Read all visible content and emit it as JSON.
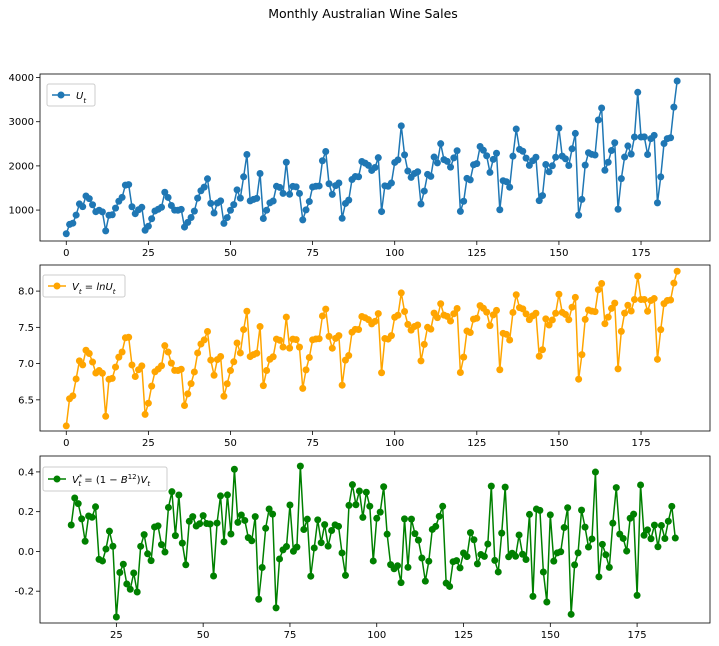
{
  "figure": {
    "title": "Monthly Australian Wine Sales"
  },
  "chart_data": [
    {
      "type": "line",
      "legend": "top-left",
      "grid": false,
      "xlim": [
        -8,
        196
      ],
      "ylim": [
        300,
        4080
      ],
      "xticks": [
        0,
        25,
        50,
        75,
        100,
        125,
        150,
        175
      ],
      "yticks": [
        1000,
        2000,
        3000,
        4000
      ],
      "series": [
        {
          "name": "U_t",
          "color": "#1f77b4",
          "x_start": 0,
          "values": [
            464,
            675,
            703,
            887,
            1139,
            1077,
            1318,
            1260,
            1120,
            963,
            996,
            960,
            530,
            883,
            894,
            1045,
            1199,
            1287,
            1565,
            1577,
            1076,
            918,
            1008,
            1063,
            544,
            635,
            804,
            980,
            1018,
            1064,
            1404,
            1286,
            1104,
            999,
            996,
            1015,
            615,
            722,
            832,
            977,
            1270,
            1437,
            1520,
            1708,
            1151,
            934,
            1159,
            1209,
            699,
            830,
            996,
            1124,
            1458,
            1270,
            1753,
            2258,
            1208,
            1241,
            1265,
            1828,
            809,
            997,
            1164,
            1205,
            1538,
            1513,
            1378,
            2083,
            1357,
            1536,
            1526,
            1376,
            779,
            1005,
            1193,
            1522,
            1539,
            1546,
            2116,
            2326,
            1596,
            1356,
            1553,
            1613,
            814,
            1150,
            1225,
            1691,
            1759,
            1754,
            2100,
            2062,
            2012,
            1897,
            1964,
            2186,
            966,
            1549,
            1538,
            1612,
            2078,
            2137,
            2907,
            2249,
            1883,
            1739,
            1828,
            1868,
            1138,
            1430,
            1809,
            1763,
            2200,
            2067,
            2503,
            2141,
            2103,
            1972,
            2181,
            2344,
            970,
            1199,
            1718,
            1683,
            2025,
            2051,
            2439,
            2353,
            2230,
            1852,
            2147,
            2286,
            1007,
            1665,
            1642,
            1518,
            2220,
            2834,
            2374,
            2332,
            2176,
            2012,
            2117,
            2195,
            1213,
            1328,
            2032,
            1866,
            2002,
            2197,
            2854,
            2221,
            2160,
            2009,
            2387,
            2735,
            884,
            1241,
            2017,
            2297,
            2262,
            2246,
            3039,
            3311,
            1901,
            2082,
            2347,
            2524,
            1019,
            1711,
            2200,
            2452,
            2266,
            2654,
            3666,
            2654,
            2656,
            2258,
            2616,
            2690,
            1163,
            1752,
            2507,
            2617,
            2637,
            3330,
            3921
          ]
        }
      ]
    },
    {
      "type": "line",
      "legend": "top-left",
      "grid": false,
      "xlim": [
        -8,
        196
      ],
      "ylim": [
        6.07,
        8.36
      ],
      "xticks": [
        0,
        25,
        50,
        75,
        100,
        125,
        150,
        175
      ],
      "yticks": [
        6.5,
        7.0,
        7.5,
        8.0
      ],
      "series": [
        {
          "name": "V_t = lnU_t",
          "color": "#ffa500",
          "x_start": 0
        }
      ]
    },
    {
      "type": "line",
      "legend": "top-left",
      "grid": false,
      "xlim": [
        3,
        196
      ],
      "ylim": [
        -0.36,
        0.48
      ],
      "xticks": [
        25,
        50,
        75,
        100,
        125,
        150,
        175
      ],
      "yticks": [
        -0.2,
        0.0,
        0.2,
        0.4
      ],
      "series": [
        {
          "name": "V*_t = (1 - B^12) V_t",
          "color": "#008000",
          "x_start": 12
        }
      ]
    }
  ]
}
